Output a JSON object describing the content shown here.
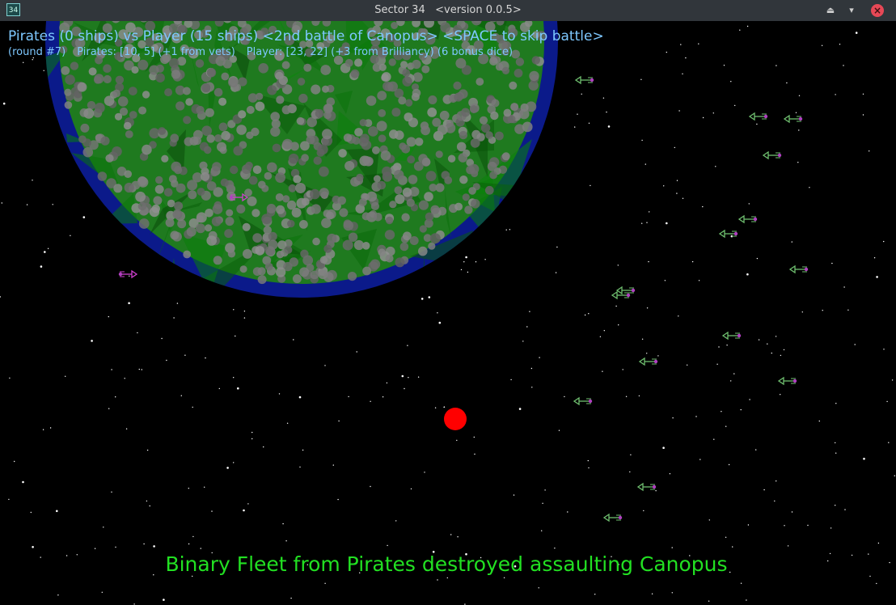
{
  "window": {
    "icon_label": "34",
    "title": "Sector 34   <version 0.0.5>",
    "keep_above_icon": "⏏",
    "minimize_icon": "▾",
    "close_icon": "×"
  },
  "hud": {
    "battle_line": "Pirates (0 ships) vs Player (15 ships) <2nd battle of Canopus> <SPACE to skip battle>",
    "round": "(round #7)",
    "pirates_stats": "Pirates: [10, 5] (+1 from vets)",
    "player_stats": "Player: [23, 22] (+3 from Brilliancy) (6 bonus dice)"
  },
  "message": "Binary Fleet from Pirates destroyed assaulting Canopus",
  "colors": {
    "hud_text": "#7ec8ff",
    "message_text": "#22e022",
    "planet_ocean": "#0b1a8a",
    "planet_land": "#1f7a1f",
    "star_core": "#ff0000",
    "player_ship": "#6fbf6f",
    "pirate_ship": "#d040d0"
  },
  "player_ships": [
    {
      "heading": "left"
    },
    {
      "heading": "left"
    },
    {
      "heading": "left"
    },
    {
      "heading": "left"
    },
    {
      "heading": "left"
    },
    {
      "heading": "left"
    },
    {
      "heading": "left"
    },
    {
      "heading": "left"
    },
    {
      "heading": "left"
    },
    {
      "heading": "left"
    },
    {
      "heading": "left"
    },
    {
      "heading": "left"
    },
    {
      "heading": "left"
    },
    {
      "heading": "left"
    },
    {
      "heading": "left"
    }
  ],
  "pirate_ships": [
    {
      "heading": "right"
    },
    {
      "heading": "right"
    }
  ]
}
